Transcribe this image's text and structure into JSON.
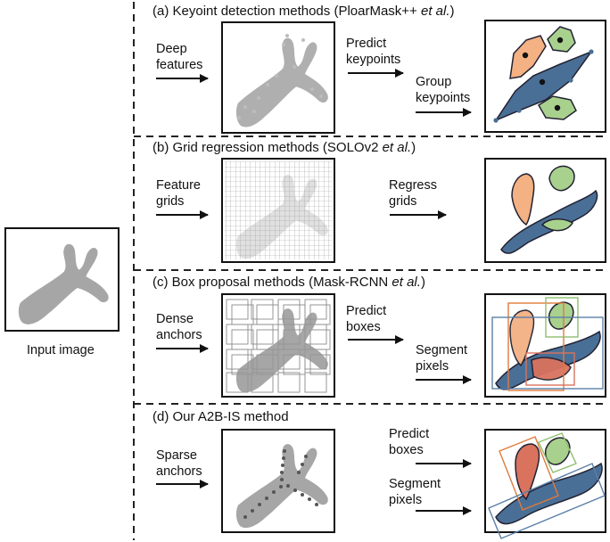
{
  "input": {
    "caption": "Input image"
  },
  "panels": [
    {
      "id": "a",
      "title_main": "(a) Keyoint detection methods (PloarMask++ ",
      "title_ital": "et al.",
      "title_end": ")",
      "steps": [
        {
          "line1": "Deep",
          "line2": "features"
        },
        {
          "line1": "Predict",
          "line2": "keypoints"
        },
        {
          "line1": "Group",
          "line2": "keypoints"
        }
      ]
    },
    {
      "id": "b",
      "title_main": "(b) Grid regression methods (SOLOv2 ",
      "title_ital": "et al.",
      "title_end": ")",
      "steps": [
        {
          "line1": "Feature",
          "line2": "grids"
        },
        {
          "line1": "Regress",
          "line2": "grids"
        }
      ]
    },
    {
      "id": "c",
      "title_main": "(c) Box proposal methods (Mask-RCNN ",
      "title_ital": "et al.",
      "title_end": ")",
      "steps": [
        {
          "line1": "Dense",
          "line2": "anchors"
        },
        {
          "line1": "Predict",
          "line2": "boxes"
        },
        {
          "line1": "Segment",
          "line2": "pixels"
        }
      ]
    },
    {
      "id": "d",
      "title_main": "(d) Our A2B-IS method",
      "title_ital": "",
      "title_end": "",
      "steps": [
        {
          "line1": "Sparse",
          "line2": "anchors"
        },
        {
          "line1": "Predict",
          "line2": "boxes"
        },
        {
          "line1": "Segment",
          "line2": "pixels"
        }
      ]
    }
  ],
  "colors": {
    "shape_gray": "#a6a6a6",
    "blue_fill": "#4a6f96",
    "orange_fill": "#f4b183",
    "green_fill": "#a9d18e",
    "red_fill": "#d9735e",
    "box_orange": "#e07a3c",
    "box_green": "#8fbf6f",
    "box_blue": "#5a7fa8",
    "dash": "#222222"
  }
}
